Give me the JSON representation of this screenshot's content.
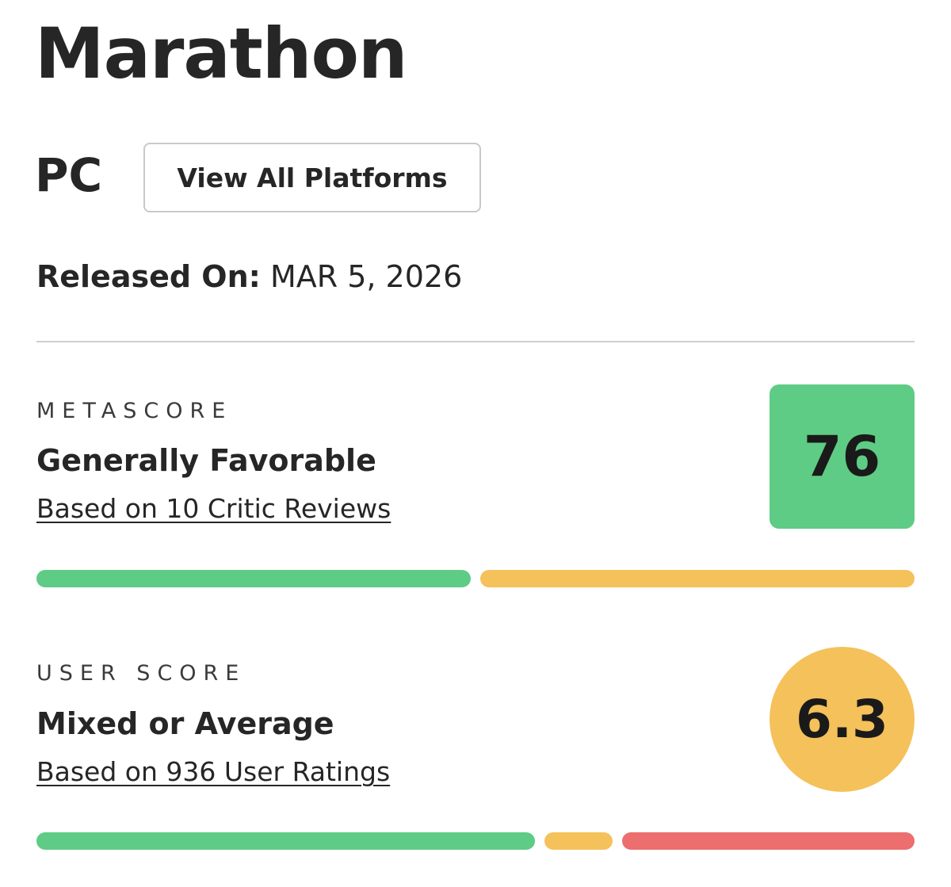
{
  "game": {
    "title": "Marathon",
    "platform": "PC",
    "view_all_platforms_label": "View All Platforms",
    "release_label": "Released On:",
    "release_date": "MAR 5, 2026"
  },
  "metascore": {
    "section_label": "METASCORE",
    "score": "76",
    "sentiment": "Generally Favorable",
    "reviews_link": "Based on 10 Critic Reviews",
    "score_color": "#5ecc84",
    "distribution": [
      {
        "name": "positive",
        "fraction": 0.5,
        "color": "#5ecc84"
      },
      {
        "name": "mixed",
        "fraction": 0.5,
        "color": "#f5c15a"
      },
      {
        "name": "negative",
        "fraction": 0.0,
        "color": "#ec6e6f"
      }
    ]
  },
  "userscore": {
    "section_label": "USER SCORE",
    "score": "6.3",
    "sentiment": "Mixed or Average",
    "ratings_link": "Based on 936 User Ratings",
    "score_color": "#f5c15a",
    "distribution": [
      {
        "name": "positive",
        "fraction": 0.58,
        "color": "#5ecc84"
      },
      {
        "name": "mixed",
        "fraction": 0.08,
        "color": "#f5c15a"
      },
      {
        "name": "negative",
        "fraction": 0.34,
        "color": "#ec6e6f"
      }
    ]
  }
}
